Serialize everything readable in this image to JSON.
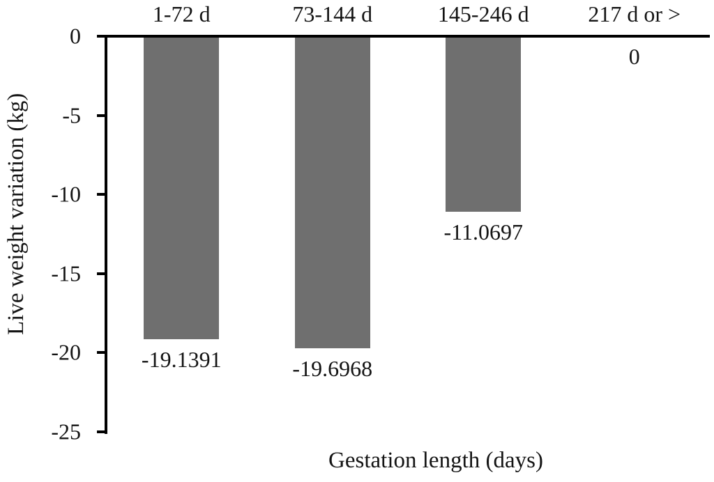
{
  "chart_data": {
    "type": "bar",
    "title": "",
    "xlabel": "Gestation length (days)",
    "ylabel": "Live weight variation (kg)",
    "categories": [
      "1-72 d",
      "73-144 d",
      "145-246 d",
      "217 d or >"
    ],
    "values": [
      -19.1391,
      -19.6968,
      -11.0697,
      0
    ],
    "data_labels": [
      "-19.1391",
      "-19.6968",
      "-11.0697",
      "0"
    ],
    "ylim": [
      -25,
      0
    ],
    "yticks": [
      0,
      -5,
      -10,
      -15,
      -20,
      -25
    ],
    "ytick_labels": [
      "0",
      "-5",
      "-10",
      "-15",
      "-20",
      "-25"
    ],
    "grid": false,
    "legend": false,
    "bar_orientation": "vertical-negative",
    "colors": {
      "bar": "#6f6f6f",
      "axis": "#000000",
      "text": "#141414",
      "background": "#ffffff"
    }
  }
}
